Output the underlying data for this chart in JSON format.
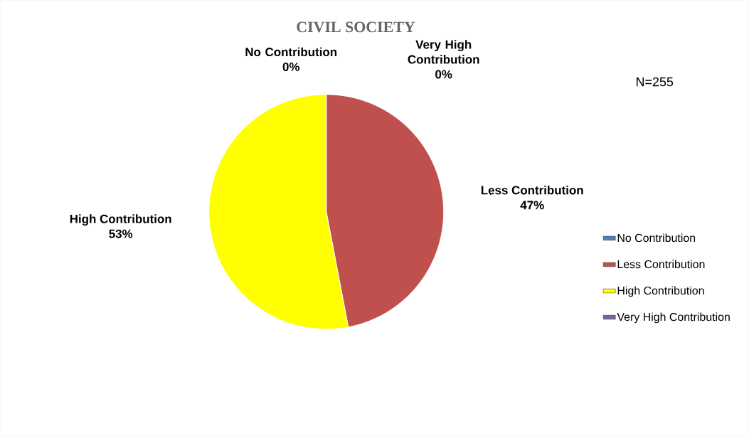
{
  "chart_data": {
    "type": "pie",
    "title": "CIVIL SOCIETY",
    "categories": [
      "No Contribution",
      "Less Contribution",
      "High Contribution",
      "Very High Contribution"
    ],
    "values": [
      0,
      47,
      53,
      0
    ],
    "value_labels": [
      "0%",
      "47%",
      "53%",
      "0%"
    ],
    "colors": [
      "#4f81bd",
      "#c0504d",
      "#ffff00",
      "#8064a2"
    ],
    "legend": "right",
    "annotations": [
      "N=255"
    ]
  }
}
